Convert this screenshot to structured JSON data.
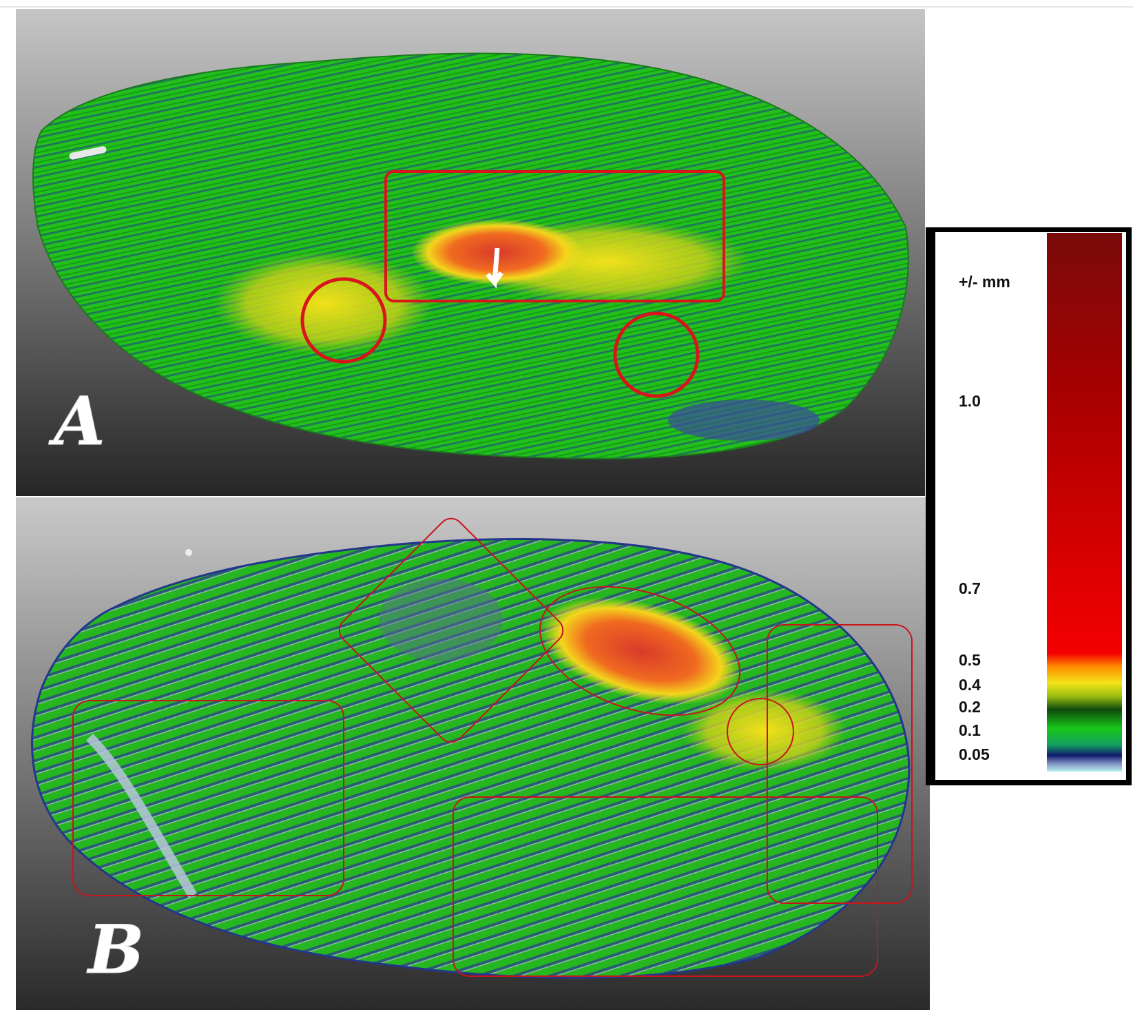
{
  "panels": [
    {
      "label": "A"
    },
    {
      "label": "B"
    }
  ],
  "legend": {
    "unit": "+/- mm",
    "labels": [
      "1.0",
      "0.7",
      "0.5",
      "0.4",
      "0.2",
      "0.1",
      "0.05"
    ]
  }
}
